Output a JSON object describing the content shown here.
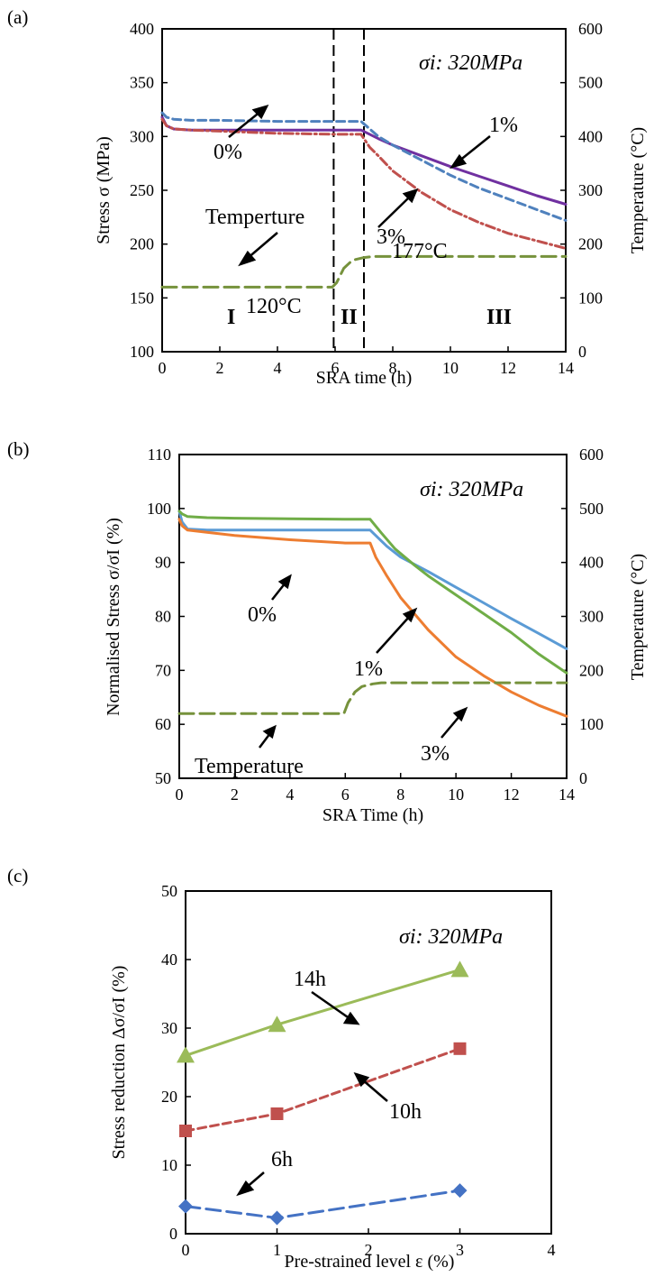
{
  "colors": {
    "purple": "#7030a0",
    "steel_blue": "#4f81bd",
    "red": "#c0504d",
    "olive_green": "#76923c",
    "orange": "#ed7d31",
    "light_blue": "#5b9bd5",
    "green": "#70ad47",
    "lime_green": "#9bbb59",
    "dash_red": "#c0504d",
    "diamond_blue": "#4472c4"
  },
  "chart_data": [
    {
      "panel": "(a)",
      "type": "line",
      "annotation": "σi: 320MPa",
      "xlabel": "SRA time (h)",
      "ylabel": "Stress σ (MPa)",
      "y2label": "Temperature (°C)",
      "xlim": [
        0,
        14
      ],
      "ylim": [
        100,
        400
      ],
      "y2lim": [
        0,
        600
      ],
      "xticks": [
        "0",
        "2",
        "4",
        "6",
        "8",
        "10",
        "12",
        "14"
      ],
      "yticks": [
        "100",
        "150",
        "200",
        "250",
        "300",
        "350",
        "400"
      ],
      "y2ticks": [
        "0",
        "100",
        "200",
        "300",
        "400",
        "500",
        "600"
      ],
      "series": [
        {
          "name": "0%",
          "axis": "left",
          "color": "#7030a0",
          "style": "solid",
          "x": [
            0,
            0.15,
            0.4,
            1,
            2,
            4,
            6,
            6.9,
            7.5,
            8,
            9,
            10,
            11,
            12,
            13,
            14
          ],
          "y": [
            318,
            310,
            307,
            306,
            306,
            306,
            306,
            306,
            298,
            292,
            282,
            272,
            263,
            254,
            245,
            237
          ]
        },
        {
          "name": "1%",
          "axis": "left",
          "color": "#4f81bd",
          "style": "dashed",
          "x": [
            0,
            0.15,
            0.4,
            1,
            2,
            4,
            6,
            6.9,
            7.5,
            8,
            9,
            10,
            11,
            12,
            13,
            14
          ],
          "y": [
            322,
            318,
            316,
            315,
            315,
            314,
            314,
            314,
            300,
            292,
            278,
            264,
            252,
            242,
            232,
            222
          ]
        },
        {
          "name": "3%",
          "axis": "left",
          "color": "#c0504d",
          "style": "dashdot",
          "x": [
            0,
            0.15,
            0.4,
            1,
            2,
            4,
            6,
            6.9,
            7.2,
            7.5,
            8,
            9,
            10,
            11,
            12,
            13,
            14
          ],
          "y": [
            316,
            310,
            307,
            306,
            305,
            303,
            302,
            302,
            290,
            282,
            268,
            248,
            232,
            220,
            210,
            203,
            196
          ]
        },
        {
          "name": "Temperture",
          "axis": "right",
          "color": "#76923c",
          "style": "longdash",
          "x": [
            0,
            5.9,
            6.05,
            6.3,
            6.6,
            7.0,
            7.3,
            14
          ],
          "y": [
            120,
            120,
            128,
            155,
            170,
            175,
            177,
            177
          ]
        }
      ],
      "vlines_x": [
        5.95,
        7.0
      ],
      "stage_labels": [
        "I",
        "II",
        "III"
      ],
      "text_labels": {
        "pct0": "0%",
        "pct1": "1%",
        "pct3": "3%",
        "temp": "Temperture",
        "t120": "120°C",
        "t177": "177°C"
      }
    },
    {
      "panel": "(b)",
      "type": "line",
      "annotation": "σi: 320MPa",
      "xlabel": "SRA Time (h)",
      "ylabel": "Normalised Stress σ/σI (%)",
      "y2label": "Temperature (°C)",
      "xlim": [
        0,
        14
      ],
      "ylim": [
        50,
        110
      ],
      "y2lim": [
        0,
        600
      ],
      "xticks": [
        "0",
        "2",
        "4",
        "6",
        "8",
        "10",
        "12",
        "14"
      ],
      "yticks": [
        "50",
        "60",
        "70",
        "80",
        "90",
        "100",
        "110"
      ],
      "y2ticks": [
        "0",
        "100",
        "200",
        "300",
        "400",
        "500",
        "600"
      ],
      "series": [
        {
          "name": "0%",
          "axis": "left",
          "color": "#5b9bd5",
          "style": "solid",
          "x": [
            0,
            0.1,
            0.3,
            1,
            2,
            4,
            6,
            6.9,
            7.5,
            8,
            9,
            10,
            11,
            12,
            13,
            14
          ],
          "y": [
            99.5,
            97.5,
            96.2,
            96,
            96,
            96,
            96,
            96,
            93,
            91,
            88.3,
            85.4,
            82.5,
            79.6,
            76.8,
            74
          ]
        },
        {
          "name": "1%",
          "axis": "left",
          "color": "#70ad47",
          "style": "solid",
          "x": [
            0,
            0.1,
            0.3,
            1,
            2,
            4,
            6,
            6.9,
            7.3,
            7.8,
            8.5,
            9,
            10,
            11,
            12,
            13,
            14
          ],
          "y": [
            99.5,
            99,
            98.5,
            98.3,
            98.2,
            98.1,
            98,
            98,
            95.5,
            92.5,
            89.5,
            87.5,
            84,
            80.5,
            77,
            73,
            69.5
          ]
        },
        {
          "name": "3%",
          "axis": "left",
          "color": "#ed7d31",
          "style": "solid",
          "x": [
            0,
            0.1,
            0.3,
            1,
            2,
            4,
            6,
            6.9,
            7.1,
            7.5,
            8,
            9,
            10,
            11,
            12,
            13,
            14
          ],
          "y": [
            98,
            96.8,
            96,
            95.6,
            95,
            94.2,
            93.6,
            93.6,
            91,
            87.5,
            83.5,
            77.5,
            72.5,
            69,
            66,
            63.5,
            61.5
          ]
        },
        {
          "name": "Temperature",
          "axis": "right",
          "color": "#76923c",
          "style": "longdash",
          "x": [
            0,
            5.95,
            6.1,
            6.35,
            6.6,
            7.0,
            7.3,
            14
          ],
          "y": [
            120,
            120,
            140,
            160,
            170,
            175,
            177,
            177
          ]
        }
      ],
      "text_labels": {
        "pct0": "0%",
        "pct1": "1%",
        "pct3": "3%",
        "temp": "Temperature"
      }
    },
    {
      "panel": "(c)",
      "type": "line",
      "annotation": "σi: 320MPa",
      "xlabel": "Pre-strained level ε (%)",
      "ylabel": "Stress reduction Δσ/σI (%)",
      "xlim": [
        0,
        4
      ],
      "ylim": [
        0,
        50
      ],
      "xticks": [
        "0",
        "1",
        "2",
        "3",
        "4"
      ],
      "yticks": [
        "0",
        "10",
        "20",
        "30",
        "40",
        "50"
      ],
      "categories": [
        0,
        1,
        3
      ],
      "series": [
        {
          "name": "14h",
          "color": "#9bbb59",
          "marker": "triangle",
          "style": "solid",
          "values": [
            26,
            30.5,
            38.5
          ]
        },
        {
          "name": "10h",
          "color": "#c0504d",
          "marker": "square",
          "style": "dashed",
          "values": [
            15,
            17.5,
            27
          ]
        },
        {
          "name": "6h",
          "color": "#4472c4",
          "marker": "diamond",
          "style": "longdash",
          "values": [
            4,
            2.3,
            6.3
          ]
        }
      ]
    }
  ]
}
